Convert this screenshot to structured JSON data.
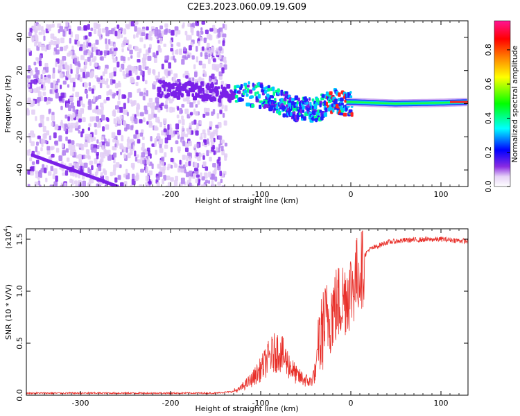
{
  "title": "C2E3.2023.060.09.19.G09",
  "chart_data": [
    {
      "type": "heatmap",
      "panel": "spectrogram",
      "xlabel": "Height of straight line (km)",
      "ylabel": "Frequency (Hz)",
      "xlim": [
        -360,
        130
      ],
      "ylim": [
        -50,
        50
      ],
      "xticks": [
        -300,
        -200,
        -100,
        0,
        100
      ],
      "yticks": [
        -40,
        -20,
        0,
        20,
        40
      ],
      "xtick_labels": [
        "-300",
        "-200",
        "-100",
        "0",
        "100"
      ],
      "ytick_labels": [
        "-40",
        "-20",
        "0",
        "20",
        "40"
      ],
      "colorbar": {
        "label": "Normalized spectral amplitude",
        "range": [
          0,
          0.97
        ],
        "ticks": [
          0.0,
          0.2,
          0.4,
          0.6,
          0.8
        ],
        "tick_labels": [
          "0.0",
          "0.2",
          "0.4",
          "0.6",
          "0.8"
        ],
        "colormap": [
          "#ffffff",
          "#8a2be2",
          "#0000ff",
          "#00ffff",
          "#00ff00",
          "#ffff00",
          "#ff8000",
          "#ff0000",
          "#ff1493"
        ]
      },
      "noise_region_x": [
        -360,
        -140
      ],
      "signal_track": [
        {
          "x": -215,
          "f": 10
        },
        {
          "x": -180,
          "f": 9
        },
        {
          "x": -150,
          "f": 8
        },
        {
          "x": -120,
          "f": 7
        },
        {
          "x": -100,
          "f": 6
        },
        {
          "x": -80,
          "f": 2
        },
        {
          "x": -60,
          "f": -2
        },
        {
          "x": -45,
          "f": -3
        },
        {
          "x": -30,
          "f": 0
        },
        {
          "x": -20,
          "f": 3
        },
        {
          "x": -10,
          "f": 1
        },
        {
          "x": 0,
          "f": 1
        },
        {
          "x": 50,
          "f": 0
        },
        {
          "x": 100,
          "f": 0.5
        },
        {
          "x": 130,
          "f": 1
        }
      ]
    },
    {
      "type": "line",
      "panel": "snr",
      "xlabel": "Height of straight line (km)",
      "ylabel": "SNR (10 * V/V)",
      "scale_label": "(x10",
      "scale_exponent": "4",
      "scale_close": ")",
      "xlim": [
        -360,
        130
      ],
      "ylim": [
        0,
        1.6
      ],
      "xticks": [
        -300,
        -200,
        -100,
        0,
        100
      ],
      "yticks": [
        0.0,
        0.5,
        1.0,
        1.5
      ],
      "xtick_labels": [
        "-300",
        "-200",
        "-100",
        "0",
        "100"
      ],
      "ytick_labels": [
        "0.0",
        "0.5",
        "1.0",
        "1.5"
      ],
      "color": "#e8302a",
      "envelope": [
        {
          "x": -360,
          "y": 0.02
        },
        {
          "x": -200,
          "y": 0.02
        },
        {
          "x": -150,
          "y": 0.02
        },
        {
          "x": -125,
          "y": 0.04
        },
        {
          "x": -110,
          "y": 0.12
        },
        {
          "x": -100,
          "y": 0.2
        },
        {
          "x": -90,
          "y": 0.3
        },
        {
          "x": -80,
          "y": 0.35
        },
        {
          "x": -70,
          "y": 0.25
        },
        {
          "x": -60,
          "y": 0.15
        },
        {
          "x": -45,
          "y": 0.1
        },
        {
          "x": -38,
          "y": 0.2
        },
        {
          "x": -35,
          "y": 0.55
        },
        {
          "x": -30,
          "y": 0.75
        },
        {
          "x": -20,
          "y": 0.9
        },
        {
          "x": -10,
          "y": 1.0
        },
        {
          "x": 0,
          "y": 1.1
        },
        {
          "x": 10,
          "y": 1.28
        },
        {
          "x": 20,
          "y": 1.4
        },
        {
          "x": 40,
          "y": 1.47
        },
        {
          "x": 60,
          "y": 1.49
        },
        {
          "x": 100,
          "y": 1.5
        },
        {
          "x": 130,
          "y": 1.48
        }
      ]
    }
  ]
}
